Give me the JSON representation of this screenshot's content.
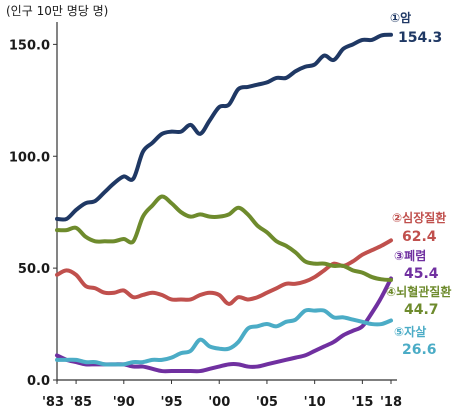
{
  "chart_data": {
    "type": "line",
    "unit_label": "(인구 10만 명당 명)",
    "ylim": [
      0,
      160
    ],
    "yticks": [
      {
        "value": 0,
        "label": "0.0"
      },
      {
        "value": 50,
        "label": "50.0"
      },
      {
        "value": 100,
        "label": "100.0"
      },
      {
        "value": 150,
        "label": "150.0"
      }
    ],
    "xlim": [
      1983,
      2018
    ],
    "xticks": [
      {
        "value": 1983,
        "label": "'83"
      },
      {
        "value": 1985,
        "label": "'85"
      },
      {
        "value": 1990,
        "label": "'90"
      },
      {
        "value": 1995,
        "label": "'95"
      },
      {
        "value": 2000,
        "label": "'00"
      },
      {
        "value": 2005,
        "label": "'05"
      },
      {
        "value": 2010,
        "label": "'10"
      },
      {
        "value": 2015,
        "label": "'15"
      },
      {
        "value": 2018,
        "label": "'18"
      }
    ],
    "x": [
      1983,
      1984,
      1985,
      1986,
      1987,
      1988,
      1989,
      1990,
      1991,
      1992,
      1993,
      1994,
      1995,
      1996,
      1997,
      1998,
      1999,
      2000,
      2001,
      2002,
      2003,
      2004,
      2005,
      2006,
      2007,
      2008,
      2009,
      2010,
      2011,
      2012,
      2013,
      2014,
      2015,
      2016,
      2017,
      2018
    ],
    "series": [
      {
        "name": "①암",
        "value_label": "154.3",
        "color": "#1f3864",
        "values": [
          72,
          72,
          76,
          79,
          80,
          84,
          88,
          91,
          90,
          102,
          106,
          110,
          111,
          111,
          114,
          110,
          116,
          122,
          123,
          130,
          131,
          132,
          133,
          135,
          135,
          138,
          140,
          141,
          145,
          143,
          148,
          150,
          152,
          152,
          154,
          154.3
        ]
      },
      {
        "name": "②심장질환",
        "value_label": "62.4",
        "color": "#c0504d",
        "values": [
          47,
          49,
          47,
          42,
          41,
          39,
          39,
          40,
          37,
          38,
          39,
          38,
          36,
          36,
          36,
          38,
          39,
          38,
          34,
          37,
          36,
          37,
          39,
          41,
          43,
          43,
          44,
          46,
          49,
          52,
          51,
          53,
          56,
          58,
          60,
          62.4
        ]
      },
      {
        "name": "③폐렴",
        "value_label": "45.4",
        "color": "#7030a0",
        "values": [
          11,
          9,
          8,
          7,
          7,
          7,
          7,
          7,
          6,
          6,
          5,
          4,
          4,
          4,
          4,
          4,
          5,
          6,
          7,
          7,
          6,
          6,
          7,
          8,
          9,
          10,
          11,
          13,
          15,
          17,
          20,
          22,
          24,
          30,
          37,
          45.4
        ]
      },
      {
        "name": "④뇌혈관질환",
        "value_label": "44.7",
        "color": "#6e8b2d",
        "values": [
          67,
          67,
          68,
          64,
          62,
          62,
          62,
          63,
          62,
          73,
          78,
          82,
          79,
          75,
          73,
          74,
          73,
          73,
          74,
          77,
          74,
          69,
          66,
          62,
          60,
          57,
          53,
          52,
          52,
          51,
          51,
          49,
          48,
          46,
          45,
          44.7
        ]
      },
      {
        "name": "⑤자살",
        "value_label": "26.6",
        "color": "#4bacc6",
        "values": [
          9,
          9,
          9,
          8,
          8,
          7,
          7,
          7,
          8,
          8,
          9,
          9,
          10,
          12,
          13,
          18,
          15,
          14,
          14,
          17,
          23,
          24,
          25,
          24,
          26,
          27,
          31,
          31,
          31,
          28,
          28,
          27,
          26,
          25,
          25,
          26.6
        ]
      }
    ]
  }
}
